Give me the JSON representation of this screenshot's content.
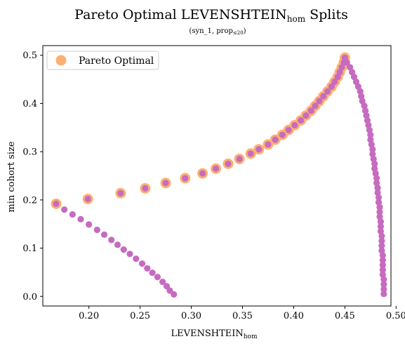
{
  "chart_data": {
    "type": "scatter",
    "title": "Pareto Optimal LEVENSHTEIN",
    "title_sub": "hom",
    "title_suffix": " Splits",
    "subtitle": "(syn_1, prop",
    "subtitle_sub": "≤20",
    "subtitle_suffix": ")",
    "xlabel": "LEVENSHTEIN",
    "xlabel_sub": "hom",
    "ylabel": "min cohort size",
    "xlim": [
      0.155,
      0.495
    ],
    "ylim": [
      -0.02,
      0.52
    ],
    "xticks": [
      0.2,
      0.25,
      0.3,
      0.35,
      0.4,
      0.45,
      0.5
    ],
    "xtick_labels": [
      "0.20",
      "0.25",
      "0.30",
      "0.35",
      "0.40",
      "0.45",
      "0.50"
    ],
    "yticks": [
      0.0,
      0.1,
      0.2,
      0.3,
      0.4,
      0.5
    ],
    "ytick_labels": [
      "0.0",
      "0.1",
      "0.2",
      "0.3",
      "0.4",
      "0.5"
    ],
    "grid": false,
    "legend": {
      "placement": "top-left",
      "entries": [
        "Pareto Optimal"
      ]
    },
    "colors": {
      "all_points": "#c66bc0",
      "pareto": "#ffb070"
    },
    "series": [
      {
        "role": "all-splits",
        "points": [
          [
            0.168,
            0.192
          ],
          [
            0.176,
            0.18
          ],
          [
            0.184,
            0.17
          ],
          [
            0.192,
            0.16
          ],
          [
            0.2,
            0.149
          ],
          [
            0.208,
            0.138
          ],
          [
            0.215,
            0.128
          ],
          [
            0.222,
            0.117
          ],
          [
            0.228,
            0.107
          ],
          [
            0.234,
            0.097
          ],
          [
            0.24,
            0.088
          ],
          [
            0.246,
            0.078
          ],
          [
            0.252,
            0.068
          ],
          [
            0.257,
            0.058
          ],
          [
            0.262,
            0.049
          ],
          [
            0.267,
            0.04
          ],
          [
            0.272,
            0.03
          ],
          [
            0.276,
            0.021
          ],
          [
            0.279,
            0.012
          ],
          [
            0.283,
            0.004
          ],
          [
            0.199,
            0.202
          ],
          [
            0.231,
            0.214
          ],
          [
            0.255,
            0.224
          ],
          [
            0.275,
            0.235
          ],
          [
            0.294,
            0.245
          ],
          [
            0.311,
            0.255
          ],
          [
            0.324,
            0.265
          ],
          [
            0.336,
            0.275
          ],
          [
            0.347,
            0.285
          ],
          [
            0.358,
            0.296
          ],
          [
            0.366,
            0.305
          ],
          [
            0.375,
            0.315
          ],
          [
            0.382,
            0.325
          ],
          [
            0.389,
            0.335
          ],
          [
            0.395,
            0.345
          ],
          [
            0.401,
            0.355
          ],
          [
            0.407,
            0.365
          ],
          [
            0.412,
            0.375
          ],
          [
            0.417,
            0.385
          ],
          [
            0.421,
            0.395
          ],
          [
            0.425,
            0.405
          ],
          [
            0.429,
            0.415
          ],
          [
            0.433,
            0.425
          ],
          [
            0.437,
            0.435
          ],
          [
            0.44,
            0.445
          ],
          [
            0.443,
            0.455
          ],
          [
            0.445,
            0.465
          ],
          [
            0.447,
            0.475
          ],
          [
            0.449,
            0.485
          ],
          [
            0.45,
            0.495
          ],
          [
            0.452,
            0.485
          ],
          [
            0.455,
            0.475
          ],
          [
            0.457,
            0.465
          ],
          [
            0.459,
            0.455
          ],
          [
            0.461,
            0.445
          ],
          [
            0.463,
            0.435
          ],
          [
            0.465,
            0.425
          ],
          [
            0.466,
            0.415
          ],
          [
            0.467,
            0.405
          ],
          [
            0.469,
            0.395
          ],
          [
            0.47,
            0.385
          ],
          [
            0.471,
            0.375
          ],
          [
            0.472,
            0.365
          ],
          [
            0.473,
            0.355
          ],
          [
            0.474,
            0.345
          ],
          [
            0.475,
            0.335
          ],
          [
            0.475,
            0.325
          ],
          [
            0.476,
            0.315
          ],
          [
            0.477,
            0.305
          ],
          [
            0.477,
            0.295
          ],
          [
            0.478,
            0.285
          ],
          [
            0.479,
            0.275
          ],
          [
            0.479,
            0.265
          ],
          [
            0.48,
            0.255
          ],
          [
            0.481,
            0.245
          ],
          [
            0.481,
            0.235
          ],
          [
            0.482,
            0.225
          ],
          [
            0.482,
            0.215
          ],
          [
            0.483,
            0.205
          ],
          [
            0.483,
            0.195
          ],
          [
            0.484,
            0.185
          ],
          [
            0.484,
            0.175
          ],
          [
            0.484,
            0.165
          ],
          [
            0.485,
            0.155
          ],
          [
            0.485,
            0.145
          ],
          [
            0.485,
            0.135
          ],
          [
            0.486,
            0.125
          ],
          [
            0.486,
            0.115
          ],
          [
            0.486,
            0.105
          ],
          [
            0.486,
            0.095
          ],
          [
            0.487,
            0.085
          ],
          [
            0.487,
            0.075
          ],
          [
            0.487,
            0.065
          ],
          [
            0.487,
            0.055
          ],
          [
            0.487,
            0.045
          ],
          [
            0.488,
            0.035
          ],
          [
            0.488,
            0.025
          ],
          [
            0.488,
            0.015
          ],
          [
            0.488,
            0.005
          ]
        ]
      },
      {
        "name": "Pareto Optimal",
        "role": "pareto",
        "points": [
          [
            0.168,
            0.192
          ],
          [
            0.199,
            0.202
          ],
          [
            0.231,
            0.214
          ],
          [
            0.255,
            0.224
          ],
          [
            0.275,
            0.235
          ],
          [
            0.294,
            0.245
          ],
          [
            0.311,
            0.255
          ],
          [
            0.324,
            0.265
          ],
          [
            0.336,
            0.275
          ],
          [
            0.347,
            0.285
          ],
          [
            0.358,
            0.296
          ],
          [
            0.366,
            0.305
          ],
          [
            0.375,
            0.315
          ],
          [
            0.382,
            0.325
          ],
          [
            0.389,
            0.335
          ],
          [
            0.395,
            0.345
          ],
          [
            0.401,
            0.355
          ],
          [
            0.407,
            0.365
          ],
          [
            0.412,
            0.375
          ],
          [
            0.417,
            0.385
          ],
          [
            0.421,
            0.395
          ],
          [
            0.425,
            0.405
          ],
          [
            0.429,
            0.415
          ],
          [
            0.433,
            0.425
          ],
          [
            0.437,
            0.435
          ],
          [
            0.44,
            0.445
          ],
          [
            0.443,
            0.455
          ],
          [
            0.445,
            0.465
          ],
          [
            0.447,
            0.475
          ],
          [
            0.449,
            0.485
          ],
          [
            0.45,
            0.495
          ]
        ]
      }
    ]
  }
}
